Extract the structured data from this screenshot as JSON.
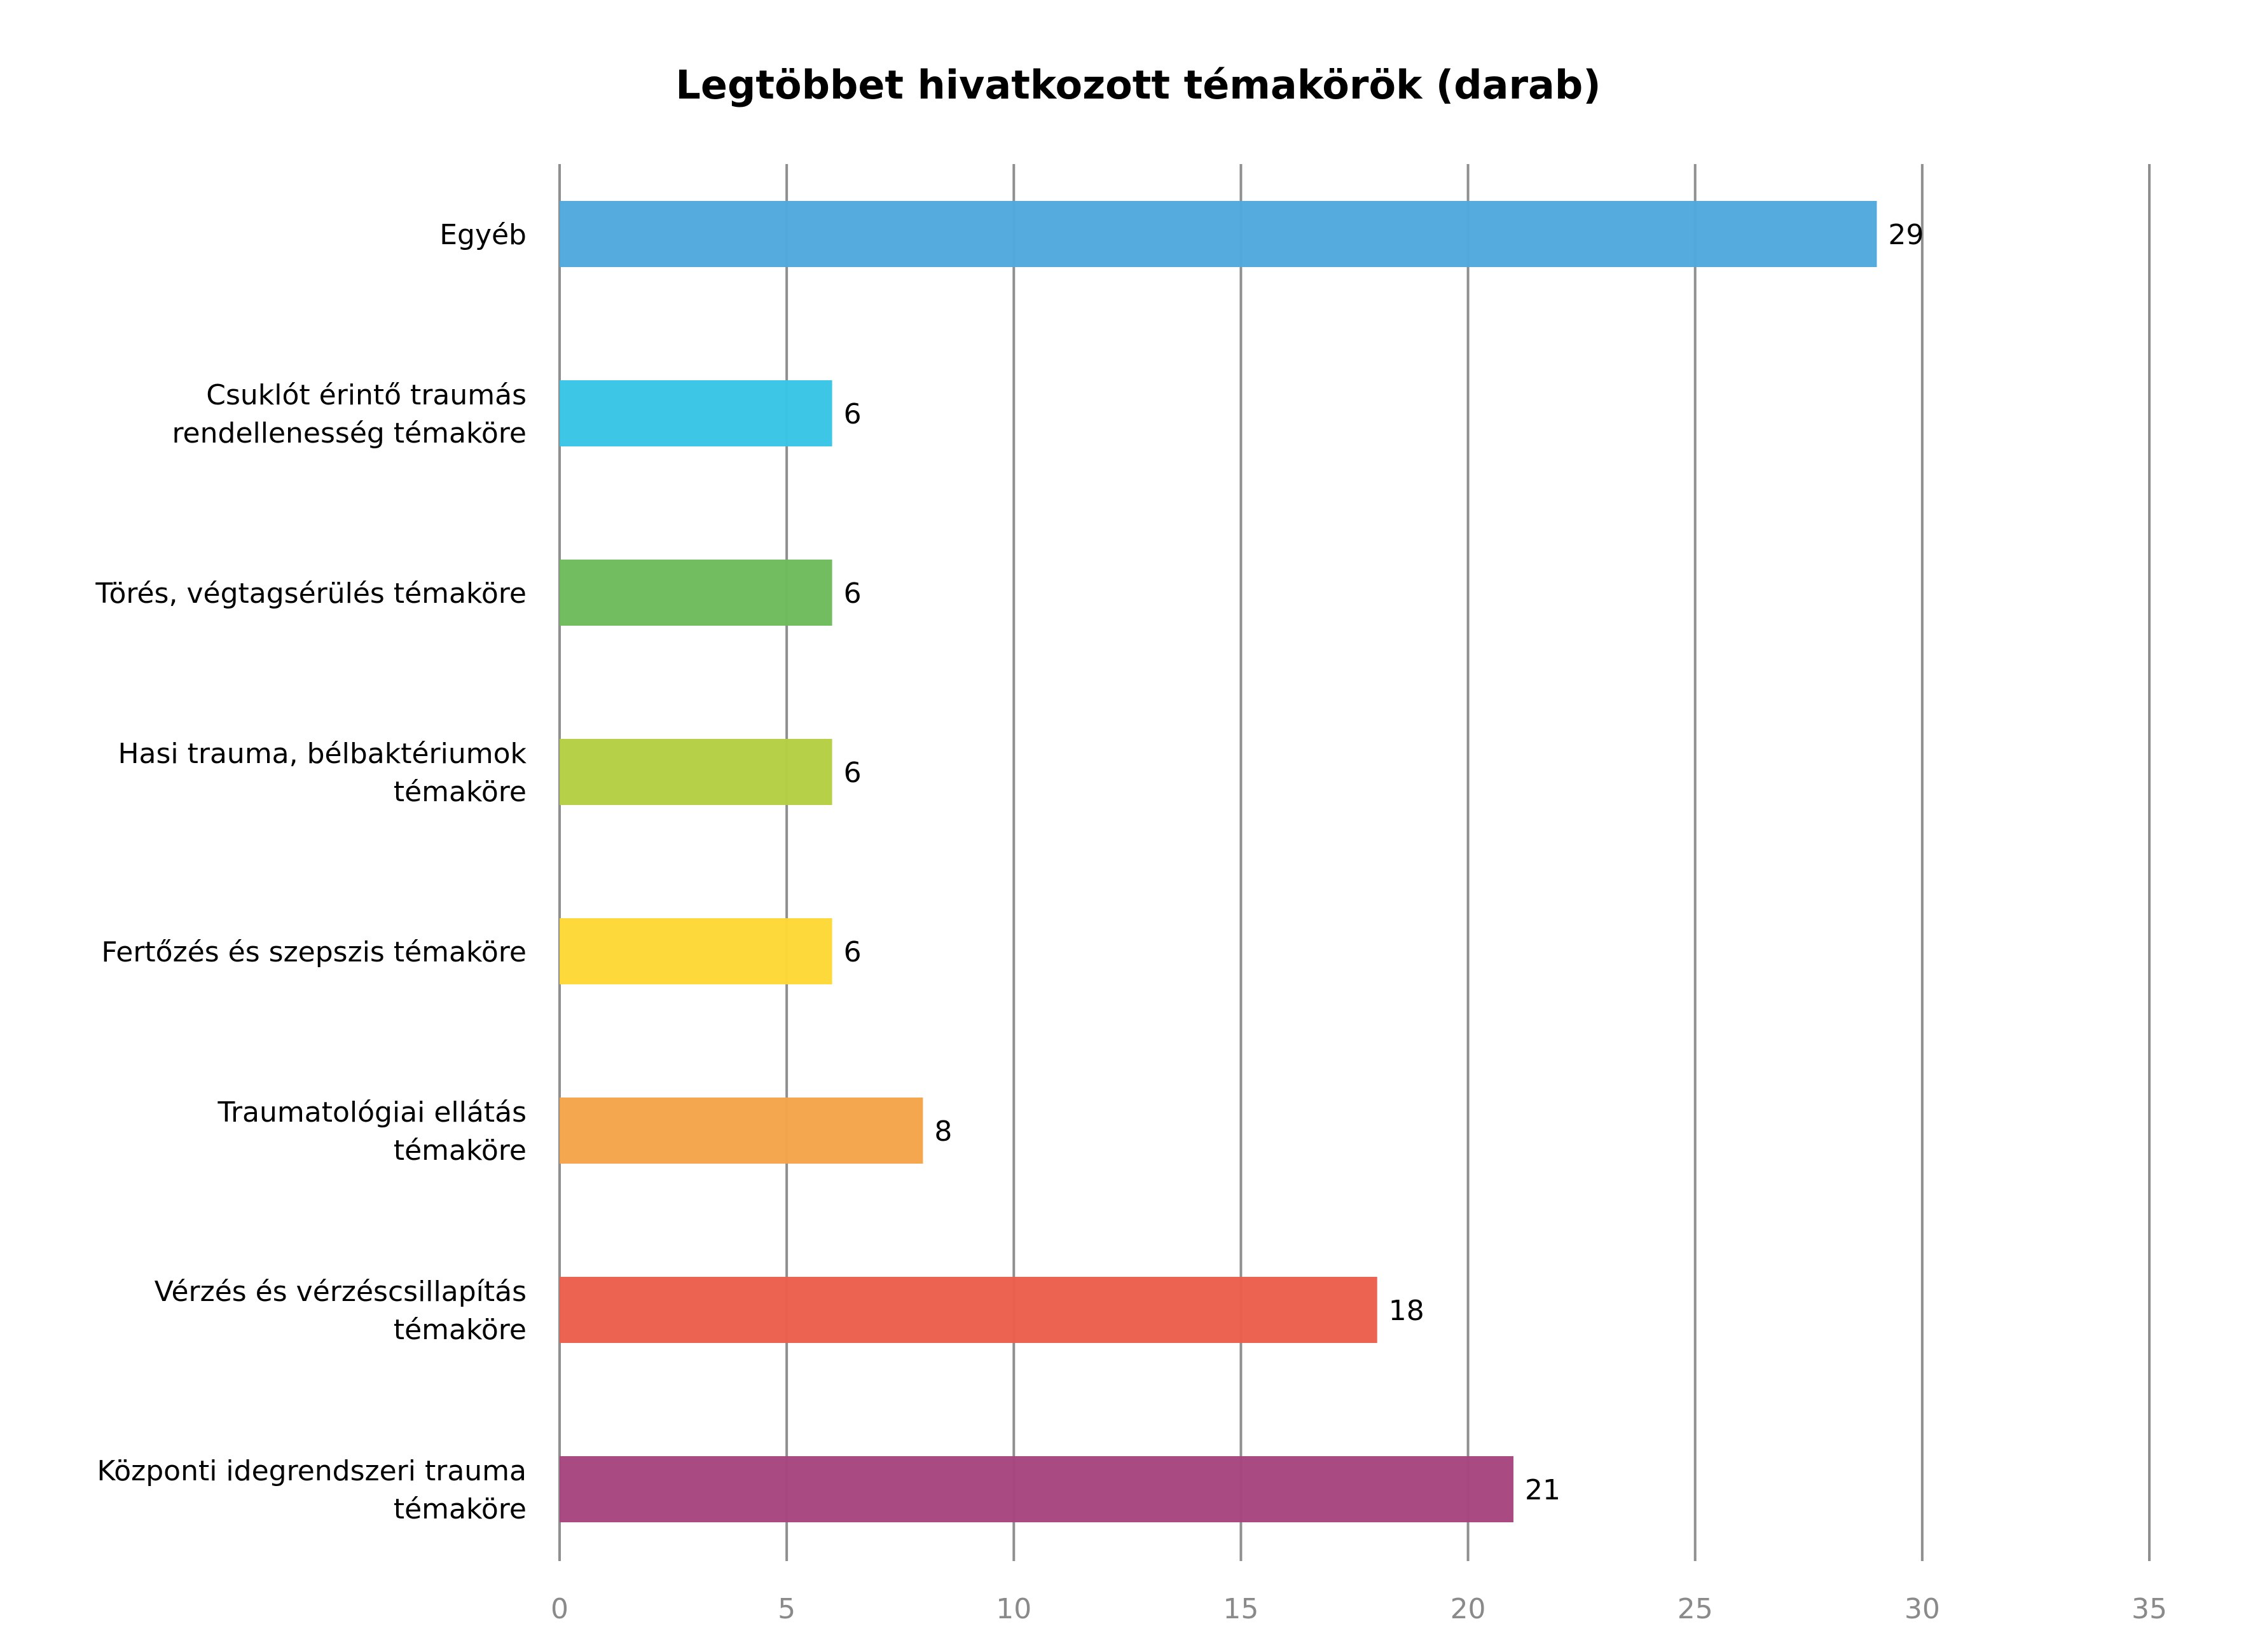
{
  "chart_data": {
    "type": "bar",
    "orientation": "horizontal",
    "title": "Legtöbbet hivatkozott témakörök (darab)",
    "xlabel": "",
    "ylabel": "",
    "xlim": [
      0,
      35
    ],
    "ticks": [
      "0",
      "5",
      "10",
      "15",
      "20",
      "25",
      "30",
      "35"
    ],
    "tick_values": [
      0,
      5,
      10,
      15,
      20,
      25,
      30,
      35
    ],
    "grid": true,
    "legend": "none",
    "categories": [
      {
        "lines": [
          "Egyéb"
        ]
      },
      {
        "lines": [
          "Csuklót érintő traumás",
          "rendellenesség témaköre"
        ]
      },
      {
        "lines": [
          "Törés, végtagsérülés témaköre"
        ]
      },
      {
        "lines": [
          "Hasi trauma, bélbaktériumok",
          "témaköre"
        ]
      },
      {
        "lines": [
          "Fertőzés és szepszis témaköre"
        ]
      },
      {
        "lines": [
          "Traumatológiai ellátás",
          "témaköre"
        ]
      },
      {
        "lines": [
          "Vérzés és vérzéscsillapítás",
          "témaköre"
        ]
      },
      {
        "lines": [
          "Központi idegrendszeri trauma",
          "témaköre"
        ]
      }
    ],
    "values": [
      29,
      6,
      6,
      6,
      6,
      8,
      18,
      21
    ],
    "value_labels": [
      "29",
      "6",
      "6",
      "6",
      "6",
      "8",
      "18",
      "21"
    ],
    "colors": [
      "#50a8dc",
      "#38c4e6",
      "#6dbb5a",
      "#b4d042",
      "#fdd835",
      "#f4a448",
      "#eb5e4b",
      "#a6447e"
    ]
  }
}
